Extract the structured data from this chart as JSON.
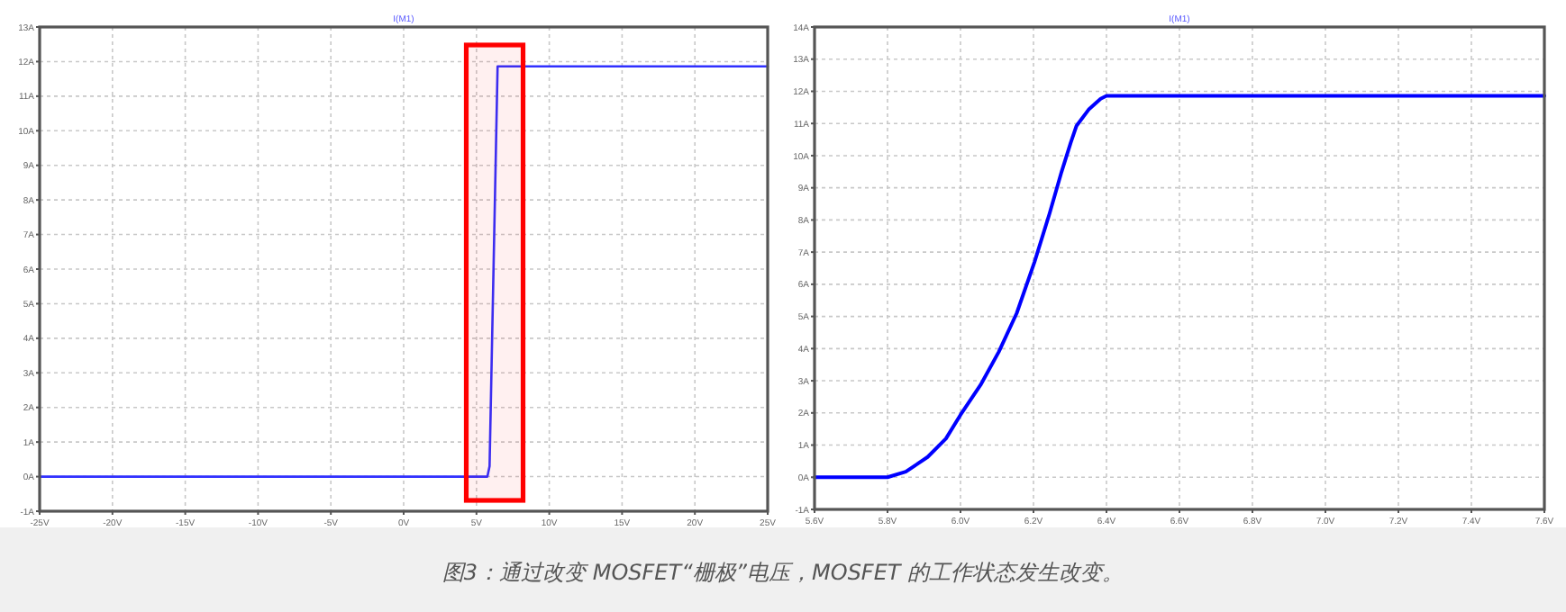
{
  "chart_data": [
    {
      "type": "line",
      "title": "I(M1)",
      "color": "#3030ff",
      "x": [
        -25,
        5.75,
        5.9,
        6.45,
        25
      ],
      "values": [
        0,
        0,
        0.3,
        11.86,
        11.86
      ],
      "xlim": [
        -25,
        25
      ],
      "ylim": [
        -1,
        13
      ],
      "xticks": [
        {
          "value": -25,
          "label": "-25V"
        },
        {
          "value": -20,
          "label": "-20V"
        },
        {
          "value": -15,
          "label": "-15V"
        },
        {
          "value": -10,
          "label": "-10V"
        },
        {
          "value": -5,
          "label": "-5V"
        },
        {
          "value": 0,
          "label": "0V"
        },
        {
          "value": 5,
          "label": "5V"
        },
        {
          "value": 10,
          "label": "10V"
        },
        {
          "value": 15,
          "label": "15V"
        },
        {
          "value": 20,
          "label": "20V"
        },
        {
          "value": 25,
          "label": "25V"
        }
      ],
      "yticks": [
        {
          "value": -1,
          "label": "-1A"
        },
        {
          "value": 0,
          "label": "0A"
        },
        {
          "value": 1,
          "label": "1A"
        },
        {
          "value": 2,
          "label": "2A"
        },
        {
          "value": 3,
          "label": "3A"
        },
        {
          "value": 4,
          "label": "4A"
        },
        {
          "value": 5,
          "label": "5A"
        },
        {
          "value": 6,
          "label": "6A"
        },
        {
          "value": 7,
          "label": "7A"
        },
        {
          "value": 8,
          "label": "8A"
        },
        {
          "value": 9,
          "label": "9A"
        },
        {
          "value": 10,
          "label": "10A"
        },
        {
          "value": 11,
          "label": "11A"
        },
        {
          "value": 12,
          "label": "12A"
        },
        {
          "value": 13,
          "label": "13A"
        }
      ],
      "grid": true,
      "bands": [
        {
          "axis": "x",
          "from": 4.3,
          "to": 8.2,
          "color": "#ff0000"
        }
      ],
      "annotations": [
        "图3：通过改变 MOSFET“栅极”电压，MOSFET 的工作状态发生改变。"
      ]
    },
    {
      "type": "line",
      "title": "I(M1)",
      "color": "#0000ff",
      "x": [
        5.6,
        5.8,
        5.85,
        5.91,
        5.96,
        6.0,
        6.055,
        6.105,
        6.154,
        6.203,
        6.244,
        6.277,
        6.302,
        6.318,
        6.351,
        6.384,
        6.4,
        7.6
      ],
      "values": [
        0,
        0,
        0.17,
        0.63,
        1.2,
        1.94,
        2.87,
        3.9,
        5.1,
        6.7,
        8.2,
        9.5,
        10.4,
        10.93,
        11.43,
        11.77,
        11.86,
        11.86
      ],
      "xlim": [
        5.6,
        7.6
      ],
      "ylim": [
        -1,
        14
      ],
      "xticks": [
        {
          "value": 5.6,
          "label": "5.6V"
        },
        {
          "value": 5.8,
          "label": "5.8V"
        },
        {
          "value": 6.0,
          "label": "6.0V"
        },
        {
          "value": 6.2,
          "label": "6.2V"
        },
        {
          "value": 6.4,
          "label": "6.4V"
        },
        {
          "value": 6.6,
          "label": "6.6V"
        },
        {
          "value": 6.8,
          "label": "6.8V"
        },
        {
          "value": 7.0,
          "label": "7.0V"
        },
        {
          "value": 7.2,
          "label": "7.2V"
        },
        {
          "value": 7.4,
          "label": "7.4V"
        },
        {
          "value": 7.6,
          "label": "7.6V"
        }
      ],
      "yticks": [
        {
          "value": -1,
          "label": "-1A"
        },
        {
          "value": 0,
          "label": "0A"
        },
        {
          "value": 1,
          "label": "1A"
        },
        {
          "value": 2,
          "label": "2A"
        },
        {
          "value": 3,
          "label": "3A"
        },
        {
          "value": 4,
          "label": "4A"
        },
        {
          "value": 5,
          "label": "5A"
        },
        {
          "value": 6,
          "label": "6A"
        },
        {
          "value": 7,
          "label": "7A"
        },
        {
          "value": 8,
          "label": "8A"
        },
        {
          "value": 9,
          "label": "9A"
        },
        {
          "value": 10,
          "label": "10A"
        },
        {
          "value": 11,
          "label": "11A"
        },
        {
          "value": 12,
          "label": "12A"
        },
        {
          "value": 13,
          "label": "13A"
        },
        {
          "value": 14,
          "label": "14A"
        }
      ],
      "grid": true
    }
  ]
}
